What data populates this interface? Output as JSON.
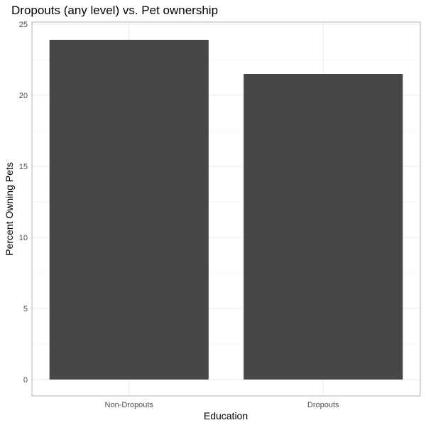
{
  "chart_data": {
    "type": "bar",
    "title": "Dropouts (any level) vs. Pet ownership",
    "xlabel": "Education",
    "ylabel": "Percent Owning Pets",
    "categories": [
      "Non-Dropouts",
      "Dropouts"
    ],
    "values": [
      23.9,
      21.5
    ],
    "ylim": [
      0,
      25
    ],
    "yticks": [
      0,
      5,
      10,
      15,
      20,
      25
    ],
    "bar_color": "#474747",
    "grid": true,
    "gridline_color": "#ebebeb",
    "panel_border_color": "#b3b3b3",
    "legend": "none"
  }
}
